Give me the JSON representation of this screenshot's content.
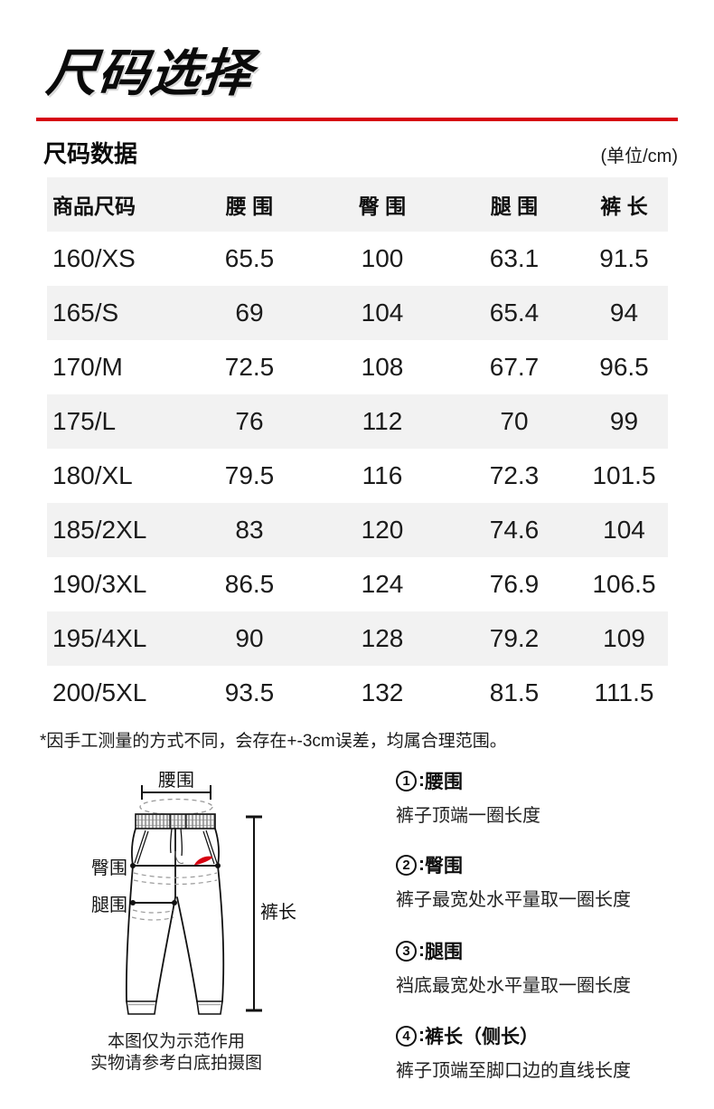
{
  "page": {
    "title": "尺码选择"
  },
  "section": {
    "heading": "尺码数据",
    "unit": "(单位/cm)"
  },
  "table": {
    "headers": [
      "商品尺码",
      "腰 围",
      "臀 围",
      "腿 围",
      "裤 长"
    ],
    "rows": [
      [
        "160/XS",
        "65.5",
        "100",
        "63.1",
        "91.5"
      ],
      [
        "165/S",
        "69",
        "104",
        "65.4",
        "94"
      ],
      [
        "170/M",
        "72.5",
        "108",
        "67.7",
        "96.5"
      ],
      [
        "175/L",
        "76",
        "112",
        "70",
        "99"
      ],
      [
        "180/XL",
        "79.5",
        "116",
        "72.3",
        "101.5"
      ],
      [
        "185/2XL",
        "83",
        "120",
        "74.6",
        "104"
      ],
      [
        "190/3XL",
        "86.5",
        "124",
        "76.9",
        "106.5"
      ],
      [
        "195/4XL",
        "90",
        "128",
        "79.2",
        "109"
      ],
      [
        "200/5XL",
        "93.5",
        "132",
        "81.5",
        "111.5"
      ]
    ],
    "note": "*因手工测量的方式不同，会存在+-3cm误差，均属合理范围。"
  },
  "diagram": {
    "labels": {
      "waist": "腰围",
      "hip": "臀围",
      "thigh": "腿围",
      "length": "裤长"
    },
    "caption_line1": "本图仅为示范作用",
    "caption_line2": "实物请参考白底拍摄图"
  },
  "explanations": {
    "colon": ": ",
    "items": [
      {
        "number": "1",
        "term": "腰围",
        "desc": "裤子顶端一圈长度"
      },
      {
        "number": "2",
        "term": "臀围",
        "desc": "裤子最宽处水平量取一圈长度"
      },
      {
        "number": "3",
        "term": "腿围",
        "desc": "裆底最宽处水平量取一圈长度"
      },
      {
        "number": "4",
        "term": "裤长（侧长）",
        "desc": "裤子顶端至脚口边的直线长度"
      }
    ]
  },
  "colors": {
    "accent_red": "#d60011",
    "stripe_gray": "#f2f2f2"
  }
}
